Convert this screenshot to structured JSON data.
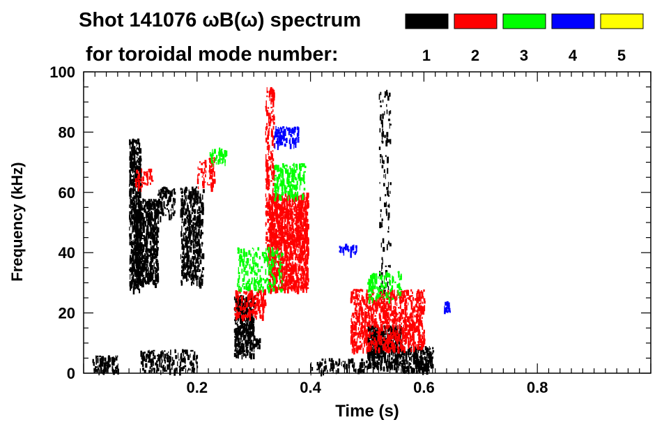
{
  "chart_data": {
    "type": "heatmap",
    "title_line1": "Shot 141076 ωB(ω) spectrum",
    "title_line2": "for toroidal mode number:",
    "xlabel": "Time (s)",
    "ylabel": "Frequency (kHz)",
    "xlim": [
      0.0,
      1.0
    ],
    "ylim": [
      0,
      100
    ],
    "x_ticks": [
      0.2,
      0.4,
      0.6,
      0.8
    ],
    "x_tick_labels": [
      "0.2",
      "0.4",
      "0.6",
      "0.8"
    ],
    "y_ticks": [
      0,
      20,
      40,
      60,
      80,
      100
    ],
    "y_tick_labels": [
      "0",
      "20",
      "40",
      "60",
      "80",
      "100"
    ],
    "legend": [
      {
        "label": "1",
        "color": "#000000"
      },
      {
        "label": "2",
        "color": "#ff0000"
      },
      {
        "label": "3",
        "color": "#00ff00"
      },
      {
        "label": "4",
        "color": "#0000ff"
      },
      {
        "label": "5",
        "color": "#ffff00"
      }
    ],
    "regions": [
      {
        "mode": 1,
        "t": [
          0.015,
          0.06
        ],
        "f": [
          1,
          6
        ],
        "density": 0.6
      },
      {
        "mode": 1,
        "t": [
          0.08,
          0.1
        ],
        "f": [
          28,
          78
        ],
        "density": 0.7
      },
      {
        "mode": 1,
        "t": [
          0.09,
          0.13
        ],
        "f": [
          30,
          58
        ],
        "density": 0.75
      },
      {
        "mode": 1,
        "t": [
          0.13,
          0.16
        ],
        "f": [
          52,
          62
        ],
        "density": 0.4
      },
      {
        "mode": 1,
        "t": [
          0.17,
          0.21
        ],
        "f": [
          30,
          62
        ],
        "density": 0.5
      },
      {
        "mode": 1,
        "t": [
          0.1,
          0.2
        ],
        "f": [
          1,
          8
        ],
        "density": 0.35
      },
      {
        "mode": 1,
        "t": [
          0.265,
          0.3
        ],
        "f": [
          6,
          26
        ],
        "density": 0.75
      },
      {
        "mode": 1,
        "t": [
          0.3,
          0.31
        ],
        "f": [
          8,
          12
        ],
        "density": 0.4
      },
      {
        "mode": 1,
        "t": [
          0.4,
          0.5
        ],
        "f": [
          1,
          5
        ],
        "density": 0.3
      },
      {
        "mode": 1,
        "t": [
          0.5,
          0.56
        ],
        "f": [
          2,
          16
        ],
        "density": 0.8
      },
      {
        "mode": 1,
        "t": [
          0.56,
          0.615
        ],
        "f": [
          1,
          9
        ],
        "density": 0.7
      },
      {
        "mode": 1,
        "t": [
          0.52,
          0.54
        ],
        "f": [
          22,
          95
        ],
        "density": 0.12
      },
      {
        "mode": 2,
        "t": [
          0.325,
          0.395
        ],
        "f": [
          28,
          60
        ],
        "density": 0.8
      },
      {
        "mode": 2,
        "t": [
          0.32,
          0.335
        ],
        "f": [
          40,
          95
        ],
        "density": 0.35
      },
      {
        "mode": 2,
        "t": [
          0.265,
          0.32
        ],
        "f": [
          19,
          28
        ],
        "density": 0.5
      },
      {
        "mode": 2,
        "t": [
          0.47,
          0.6
        ],
        "f": [
          8,
          28
        ],
        "density": 0.5
      },
      {
        "mode": 2,
        "t": [
          0.09,
          0.12
        ],
        "f": [
          62,
          68
        ],
        "density": 0.4
      },
      {
        "mode": 2,
        "t": [
          0.2,
          0.23
        ],
        "f": [
          62,
          72
        ],
        "density": 0.3
      },
      {
        "mode": 3,
        "t": [
          0.335,
          0.39
        ],
        "f": [
          58,
          70
        ],
        "density": 0.4
      },
      {
        "mode": 3,
        "t": [
          0.22,
          0.25
        ],
        "f": [
          70,
          75
        ],
        "density": 0.4
      },
      {
        "mode": 3,
        "t": [
          0.27,
          0.35
        ],
        "f": [
          28,
          42
        ],
        "density": 0.25
      },
      {
        "mode": 3,
        "t": [
          0.5,
          0.56
        ],
        "f": [
          25,
          34
        ],
        "density": 0.3
      },
      {
        "mode": 4,
        "t": [
          0.335,
          0.38
        ],
        "f": [
          76,
          82
        ],
        "density": 0.45
      },
      {
        "mode": 4,
        "t": [
          0.45,
          0.48
        ],
        "f": [
          40,
          43
        ],
        "density": 0.4
      },
      {
        "mode": 4,
        "t": [
          0.635,
          0.645
        ],
        "f": [
          20,
          24
        ],
        "density": 0.5
      }
    ]
  }
}
